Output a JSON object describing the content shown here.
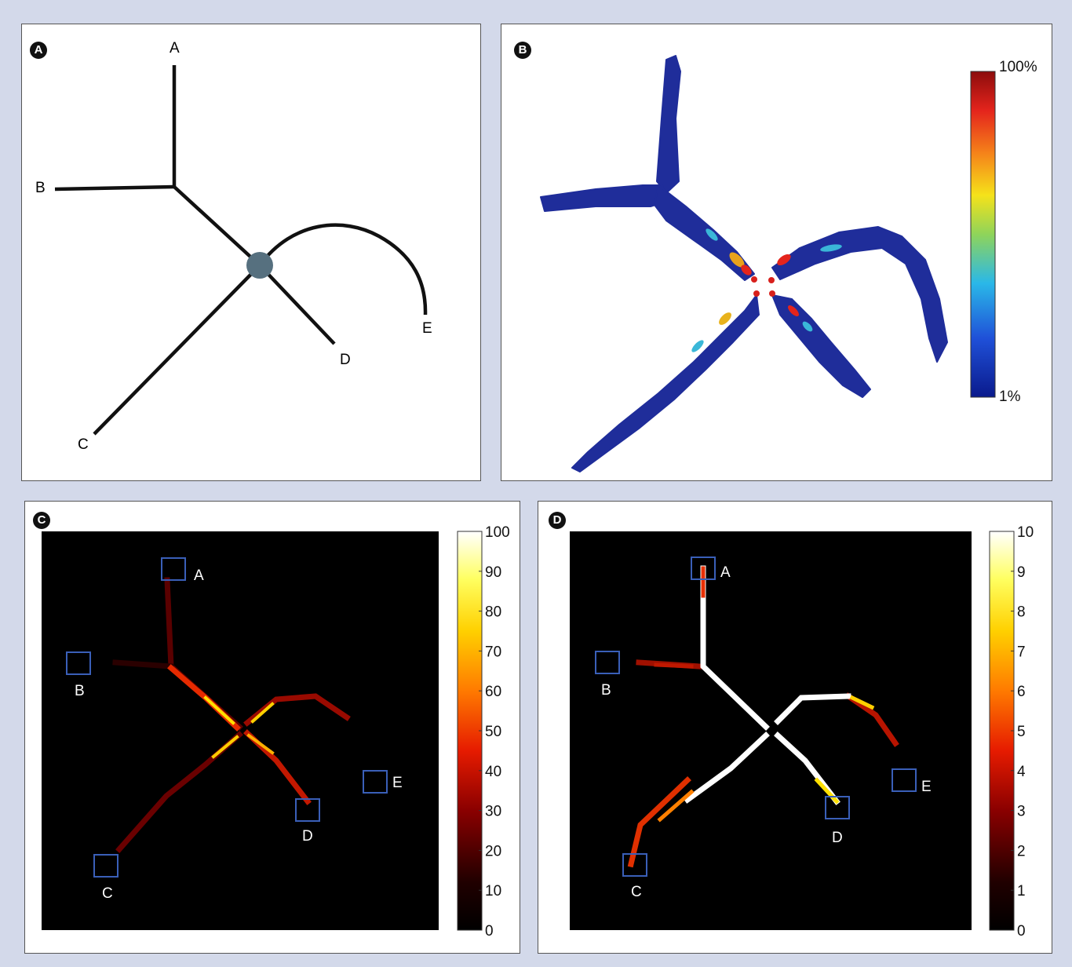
{
  "panels": {
    "a": {
      "badge": "A"
    },
    "b": {
      "badge": "B",
      "scale_max": "100%",
      "scale_min": "1%"
    },
    "c": {
      "badge": "C",
      "ticks": [
        "100",
        "90",
        "80",
        "70",
        "60",
        "50",
        "40",
        "30",
        "20",
        "10",
        "0"
      ]
    },
    "d": {
      "badge": "D",
      "ticks": [
        "10",
        "9",
        "8",
        "7",
        "6",
        "5",
        "4",
        "3",
        "2",
        "1",
        "0"
      ]
    }
  },
  "labels": {
    "a": "A",
    "b": "B",
    "c": "C",
    "d": "D",
    "e": "E"
  },
  "colors": {
    "background": "#d3d9ea",
    "node": "#56707f",
    "roi_box": "#3a5fb8",
    "tract_base": "#1f2d9a",
    "colormap_jet": [
      "#00008f",
      "#0000ff",
      "#00ffff",
      "#ffff00",
      "#ff0000",
      "#800000"
    ],
    "colormap_hot": [
      "#000000",
      "#800000",
      "#ff0000",
      "#ff9900",
      "#ffff00",
      "#ffffff"
    ]
  }
}
